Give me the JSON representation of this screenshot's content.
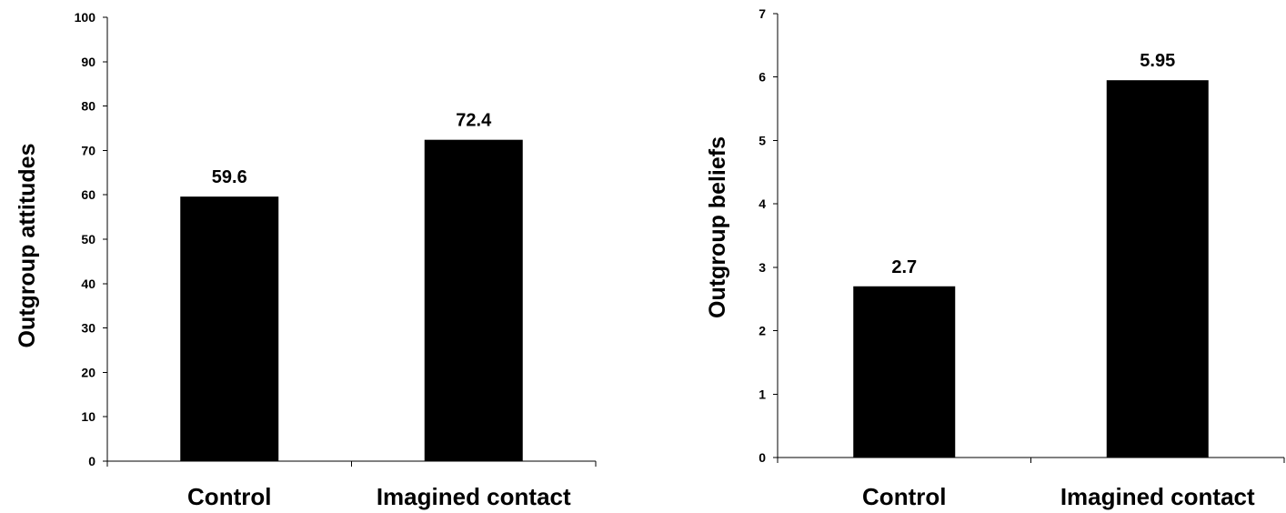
{
  "chart_data": [
    {
      "type": "bar",
      "categories": [
        "Control",
        "Imagined contact"
      ],
      "values": [
        59.6,
        72.4
      ],
      "data_labels": [
        "59.6",
        "72.4"
      ],
      "title": "",
      "xlabel": "",
      "ylabel": "Outgroup attitudes",
      "ylim": [
        0,
        100
      ],
      "yticks": [
        0,
        10,
        20,
        30,
        40,
        50,
        60,
        70,
        80,
        90,
        100
      ],
      "grid": false,
      "legend": "none",
      "bar_color": "#000000"
    },
    {
      "type": "bar",
      "categories": [
        "Control",
        "Imagined contact"
      ],
      "values": [
        2.7,
        5.95
      ],
      "data_labels": [
        "2.7",
        "5.95"
      ],
      "title": "",
      "xlabel": "",
      "ylabel": "Outgroup beliefs",
      "ylim": [
        0,
        7
      ],
      "yticks": [
        0,
        1,
        2,
        3,
        4,
        5,
        6,
        7
      ],
      "grid": false,
      "legend": "none",
      "bar_color": "#000000"
    }
  ]
}
